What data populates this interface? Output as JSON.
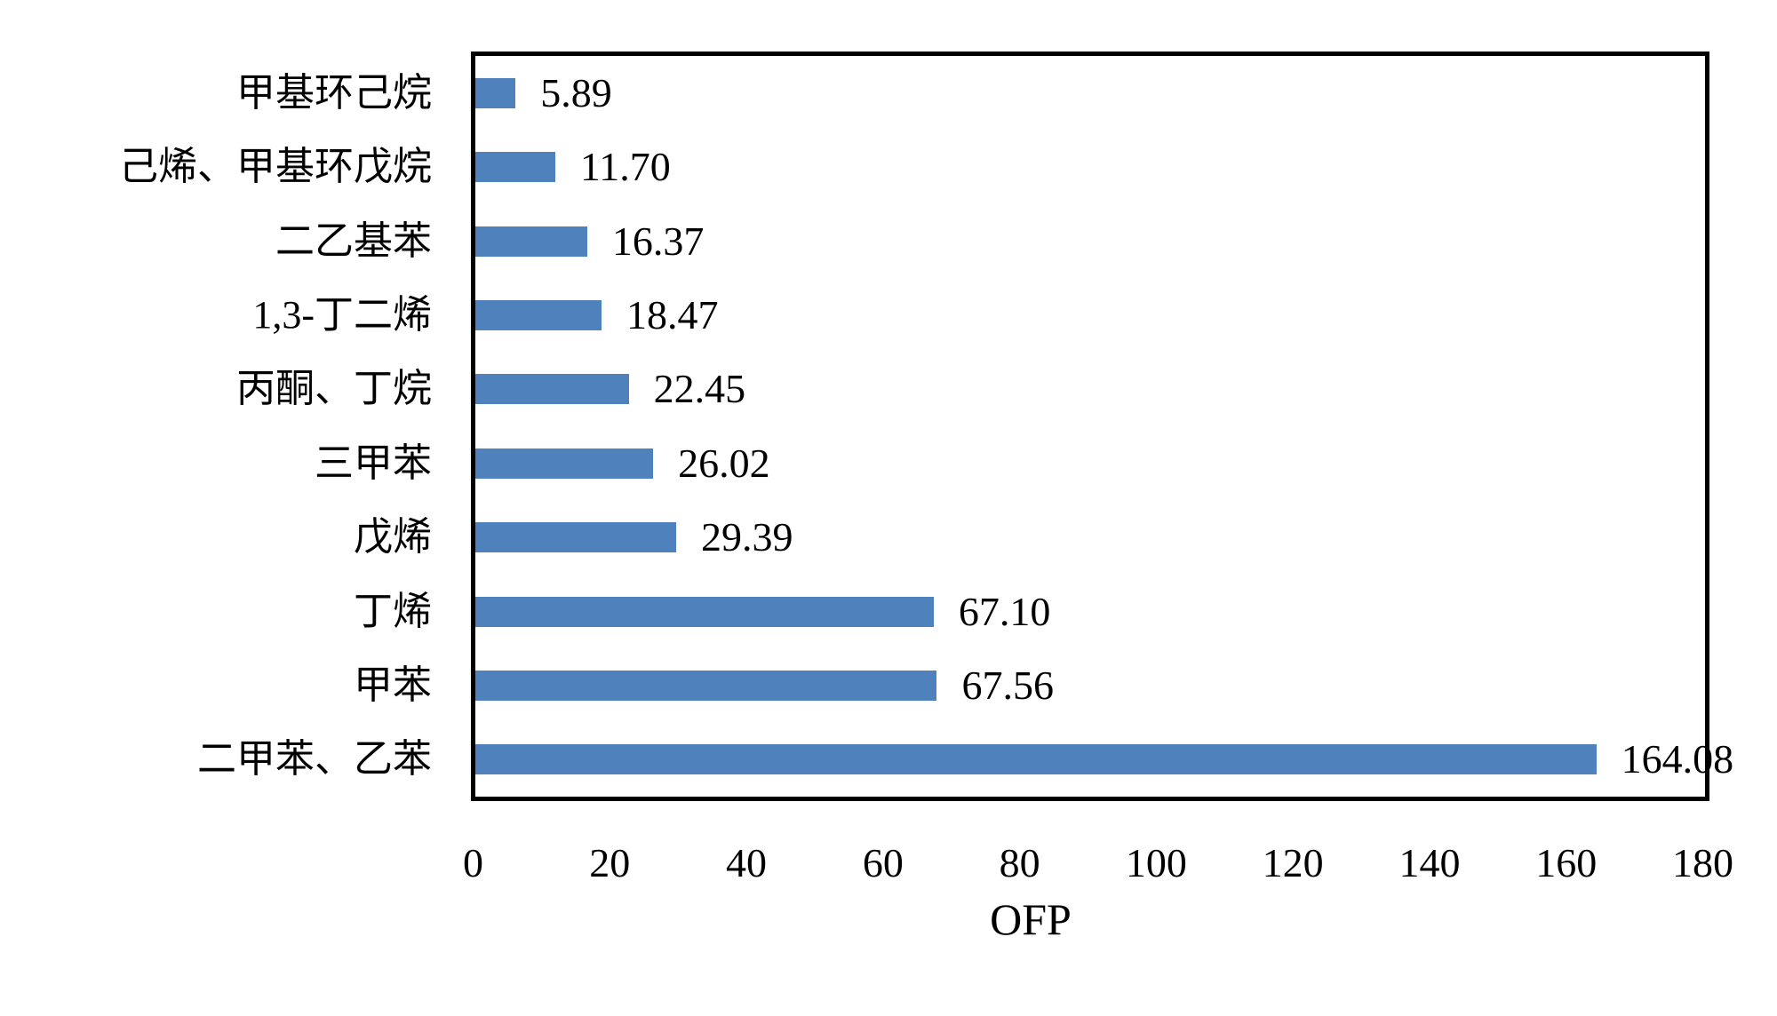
{
  "chart_data": {
    "type": "bar",
    "orientation": "horizontal",
    "title": "",
    "xlabel": "OFP",
    "xlim": [
      0,
      180
    ],
    "x_ticks": [
      "0",
      "20",
      "40",
      "60",
      "80",
      "100",
      "120",
      "140",
      "160",
      "180"
    ],
    "grid": false,
    "legend": false,
    "bar_color": "#4F81BD",
    "border_color": "#000000",
    "categories": [
      "甲基环己烷",
      "己烯、甲基环戊烷",
      "二乙基苯",
      "1,3-丁二烯",
      "丙酮、丁烷",
      "三甲苯",
      "戊烯",
      "丁烯",
      "甲苯",
      "二甲苯、乙苯"
    ],
    "values": [
      5.89,
      11.7,
      16.37,
      18.47,
      22.45,
      26.02,
      29.39,
      67.1,
      67.56,
      164.08
    ],
    "value_labels": [
      "5.89",
      "11.70",
      "16.37",
      "18.47",
      "22.45",
      "26.02",
      "29.39",
      "67.10",
      "67.56",
      "164.08"
    ]
  }
}
